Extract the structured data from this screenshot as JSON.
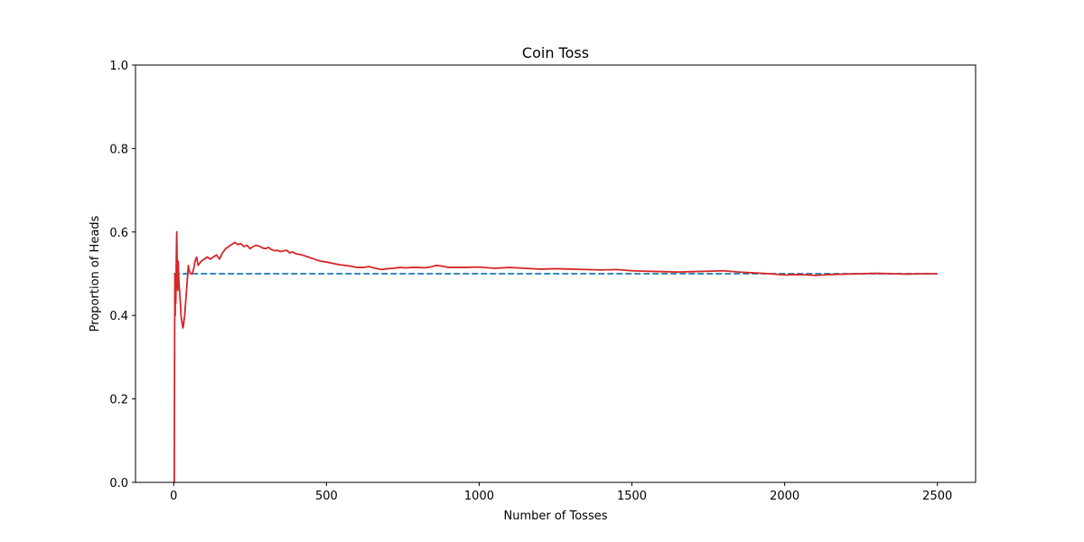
{
  "chart_data": {
    "type": "line",
    "title": "Coin Toss",
    "xlabel": "Number of Tosses",
    "ylabel": "Proportion of Heads",
    "xlim": [
      -125,
      2625
    ],
    "ylim": [
      0,
      1.0
    ],
    "x_ticks": [
      0,
      500,
      1000,
      1500,
      2000,
      2500
    ],
    "x_tick_labels": [
      "0",
      "500",
      "1000",
      "1500",
      "2000",
      "2500"
    ],
    "y_ticks": [
      0.0,
      0.2,
      0.4,
      0.6,
      0.8,
      1.0
    ],
    "y_tick_labels": [
      "0.0",
      "0.2",
      "0.4",
      "0.6",
      "0.8",
      "1.0"
    ],
    "grid": false,
    "series": [
      {
        "color": "#d62728",
        "style": "solid",
        "points": [
          [
            1,
            0.0
          ],
          [
            2,
            0.0
          ],
          [
            3,
            0.33
          ],
          [
            4,
            0.5
          ],
          [
            5,
            0.4
          ],
          [
            6,
            0.5
          ],
          [
            7,
            0.43
          ],
          [
            8,
            0.5
          ],
          [
            9,
            0.56
          ],
          [
            10,
            0.6
          ],
          [
            11,
            0.55
          ],
          [
            12,
            0.5
          ],
          [
            13,
            0.46
          ],
          [
            14,
            0.5
          ],
          [
            15,
            0.53
          ],
          [
            16,
            0.5
          ],
          [
            18,
            0.47
          ],
          [
            20,
            0.45
          ],
          [
            22,
            0.43
          ],
          [
            24,
            0.4
          ],
          [
            26,
            0.39
          ],
          [
            28,
            0.38
          ],
          [
            30,
            0.37
          ],
          [
            32,
            0.375
          ],
          [
            34,
            0.39
          ],
          [
            36,
            0.4
          ],
          [
            38,
            0.42
          ],
          [
            40,
            0.44
          ],
          [
            42,
            0.46
          ],
          [
            44,
            0.48
          ],
          [
            46,
            0.5
          ],
          [
            48,
            0.52
          ],
          [
            50,
            0.51
          ],
          [
            55,
            0.5
          ],
          [
            60,
            0.5
          ],
          [
            65,
            0.51
          ],
          [
            70,
            0.53
          ],
          [
            75,
            0.54
          ],
          [
            80,
            0.52
          ],
          [
            90,
            0.53
          ],
          [
            100,
            0.535
          ],
          [
            110,
            0.54
          ],
          [
            120,
            0.535
          ],
          [
            130,
            0.54
          ],
          [
            140,
            0.545
          ],
          [
            150,
            0.535
          ],
          [
            160,
            0.55
          ],
          [
            170,
            0.56
          ],
          [
            180,
            0.565
          ],
          [
            190,
            0.57
          ],
          [
            200,
            0.575
          ],
          [
            210,
            0.57
          ],
          [
            220,
            0.572
          ],
          [
            230,
            0.565
          ],
          [
            240,
            0.568
          ],
          [
            250,
            0.56
          ],
          [
            260,
            0.565
          ],
          [
            270,
            0.568
          ],
          [
            280,
            0.566
          ],
          [
            290,
            0.562
          ],
          [
            300,
            0.56
          ],
          [
            310,
            0.563
          ],
          [
            320,
            0.558
          ],
          [
            330,
            0.555
          ],
          [
            340,
            0.556
          ],
          [
            350,
            0.553
          ],
          [
            360,
            0.555
          ],
          [
            370,
            0.556
          ],
          [
            380,
            0.55
          ],
          [
            390,
            0.552
          ],
          [
            400,
            0.548
          ],
          [
            420,
            0.545
          ],
          [
            440,
            0.54
          ],
          [
            460,
            0.535
          ],
          [
            480,
            0.53
          ],
          [
            500,
            0.528
          ],
          [
            520,
            0.525
          ],
          [
            540,
            0.522
          ],
          [
            560,
            0.52
          ],
          [
            580,
            0.518
          ],
          [
            600,
            0.515
          ],
          [
            620,
            0.515
          ],
          [
            640,
            0.517
          ],
          [
            660,
            0.513
          ],
          [
            680,
            0.51
          ],
          [
            700,
            0.512
          ],
          [
            720,
            0.513
          ],
          [
            740,
            0.515
          ],
          [
            760,
            0.514
          ],
          [
            780,
            0.515
          ],
          [
            800,
            0.515
          ],
          [
            820,
            0.514
          ],
          [
            840,
            0.516
          ],
          [
            860,
            0.52
          ],
          [
            880,
            0.518
          ],
          [
            900,
            0.515
          ],
          [
            950,
            0.515
          ],
          [
            1000,
            0.516
          ],
          [
            1050,
            0.513
          ],
          [
            1100,
            0.515
          ],
          [
            1150,
            0.513
          ],
          [
            1200,
            0.511
          ],
          [
            1250,
            0.512
          ],
          [
            1300,
            0.511
          ],
          [
            1350,
            0.51
          ],
          [
            1400,
            0.509
          ],
          [
            1450,
            0.51
          ],
          [
            1500,
            0.507
          ],
          [
            1550,
            0.506
          ],
          [
            1600,
            0.505
          ],
          [
            1650,
            0.504
          ],
          [
            1700,
            0.505
          ],
          [
            1750,
            0.506
          ],
          [
            1800,
            0.507
          ],
          [
            1850,
            0.504
          ],
          [
            1900,
            0.502
          ],
          [
            1950,
            0.5
          ],
          [
            2000,
            0.497
          ],
          [
            2050,
            0.498
          ],
          [
            2100,
            0.496
          ],
          [
            2150,
            0.498
          ],
          [
            2200,
            0.499
          ],
          [
            2250,
            0.5
          ],
          [
            2300,
            0.501
          ],
          [
            2350,
            0.5
          ],
          [
            2400,
            0.499
          ],
          [
            2450,
            0.5
          ],
          [
            2500,
            0.5
          ]
        ]
      },
      {
        "color": "#1f77b4",
        "style": "dashed",
        "points": [
          [
            0,
            0.5
          ],
          [
            2500,
            0.5
          ]
        ]
      }
    ]
  }
}
